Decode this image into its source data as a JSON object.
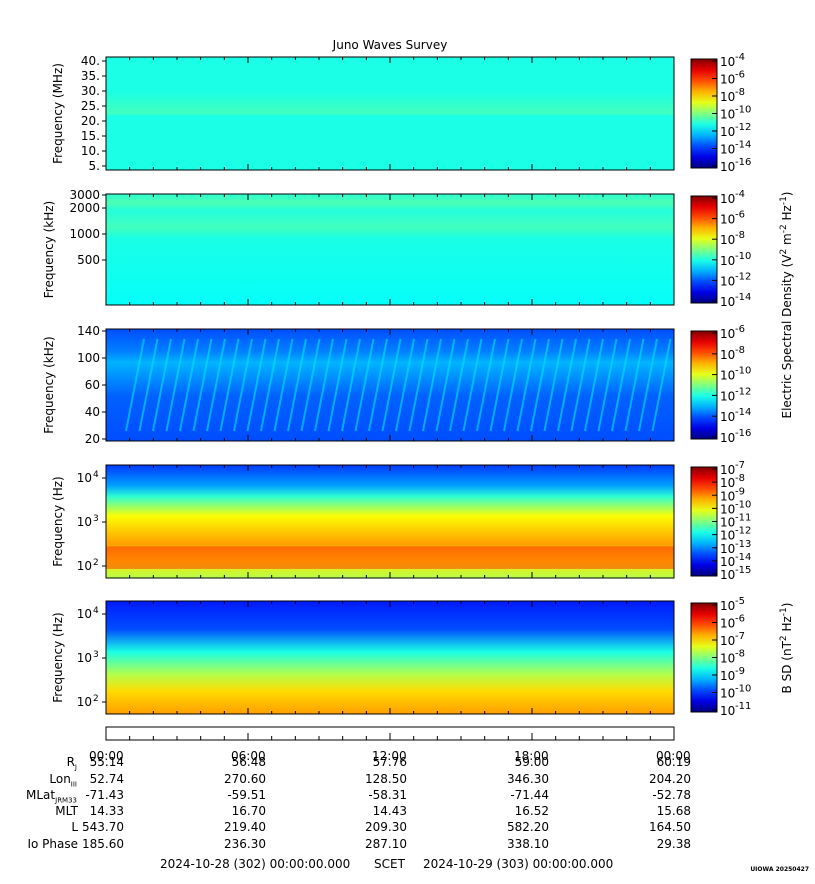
{
  "title": "Juno Waves Survey",
  "panels": [
    {
      "ylabel": "Frequency (MHz)",
      "yticks": [
        "40.",
        "35.",
        "30.",
        "25.",
        "20.",
        "15.",
        "10.",
        "5."
      ],
      "cbar_ticks": [
        "-4",
        "-6",
        "-8",
        "-10",
        "-12",
        "-14",
        "-16"
      ],
      "cbar_range": [
        -17,
        -4
      ],
      "data_range": [
        -13,
        -11
      ],
      "description_level": "uniform"
    },
    {
      "ylabel": "Frequency (kHz)",
      "yticks": [
        "3000",
        "2000",
        "1000",
        "500"
      ],
      "cbar_ticks": [
        "-4",
        "-6",
        "-8",
        "-10",
        "-12",
        "-14"
      ],
      "cbar_range": [
        -15,
        -3.5
      ]
    },
    {
      "ylabel": "Frequency (kHz)",
      "yticks": [
        "140",
        "100",
        "60",
        "40",
        "20"
      ],
      "cbar_ticks": [
        "-6",
        "-8",
        "-10",
        "-12",
        "-14",
        "-16"
      ],
      "cbar_range": [
        -16,
        -6
      ]
    },
    {
      "ylabel": "Frequency (Hz)",
      "yticks": [
        "10",
        "10",
        "10"
      ],
      "yticks_exp": [
        "4",
        "3",
        "2"
      ],
      "cbar_ticks": [
        "-7",
        "-8",
        "-9",
        "-10",
        "-11",
        "-12",
        "-13",
        "-14",
        "-15"
      ],
      "cbar_range": [
        -15,
        -7
      ]
    },
    {
      "ylabel": "Frequency (Hz)",
      "yticks": [
        "10",
        "10",
        "10"
      ],
      "yticks_exp": [
        "4",
        "3",
        "2"
      ],
      "cbar_ticks": [
        "-5",
        "-6",
        "-7",
        "-8",
        "-9",
        "-10",
        "-11"
      ],
      "cbar_range": [
        -11,
        -4.5
      ]
    }
  ],
  "cbar_base": "10",
  "cbar_label_e": {
    "pre": "Electric Spectral Density (V",
    "sup1": "2",
    "mid": " m",
    "sup2": "-2",
    "mid2": " Hz",
    "sup3": "-1",
    "post": ")"
  },
  "cbar_label_b": {
    "pre": "B SD (nT",
    "sup1": "2",
    "mid": " Hz",
    "sup2": "-1",
    "post": ")"
  },
  "chart_data": {
    "type": "heatmap",
    "title": "Juno Waves Survey",
    "xlabel": "SCET",
    "x_ticks": [
      "00:00",
      "06:00",
      "12:00",
      "18:00",
      "00:00"
    ],
    "x_range": [
      "2024-10-28 (302) 00:00:00.000",
      "2024-10-29 (303) 00:00:00.000"
    ],
    "series": [
      {
        "panel": 1,
        "ylabel": "Frequency (MHz)",
        "yrange": [
          3,
          41
        ],
        "colorbar_log_range": [
          -17,
          -4
        ]
      },
      {
        "panel": 2,
        "ylabel": "Frequency (kHz)",
        "yrange": [
          150,
          3000
        ],
        "colorbar_log_range": [
          -15,
          -3.5
        ]
      },
      {
        "panel": 3,
        "ylabel": "Frequency (kHz)",
        "yrange": [
          20,
          140
        ],
        "colorbar_log_range": [
          -16,
          -6
        ]
      },
      {
        "panel": 4,
        "ylabel": "Frequency (Hz)",
        "yrange": [
          50,
          20000
        ],
        "colorbar_log_range": [
          -15,
          -7
        ]
      },
      {
        "panel": 5,
        "ylabel": "Frequency (Hz)",
        "yrange": [
          50,
          20000
        ],
        "colorbar_log_range": [
          -11,
          -4.5
        ]
      }
    ]
  },
  "ephemeris": {
    "labels": [
      {
        "main": "R",
        "sub": "J"
      },
      {
        "main": "Lon",
        "sub": "III"
      },
      {
        "main": "MLat",
        "sub": "JRM33"
      },
      {
        "main": "MLT",
        "sub": ""
      },
      {
        "main": "L",
        "sub": ""
      },
      {
        "main": "Io Phase",
        "sub": ""
      }
    ],
    "columns": [
      [
        "55.14",
        "52.74",
        "-71.43",
        "14.33",
        "543.70",
        "185.60"
      ],
      [
        "56.48",
        "270.60",
        "-59.51",
        "16.70",
        "219.40",
        "236.30"
      ],
      [
        "57.76",
        "128.50",
        "-58.31",
        "14.43",
        "209.30",
        "287.10"
      ],
      [
        "59.00",
        "346.30",
        "-71.44",
        "16.52",
        "582.20",
        "338.10"
      ],
      [
        "60.19",
        "204.20",
        "-52.78",
        "15.68",
        "164.50",
        "29.38"
      ]
    ]
  },
  "footer": {
    "start": "2024-10-28 (302) 00:00:00.000",
    "label": "SCET",
    "end": "2024-10-29 (303) 00:00:00.000"
  },
  "watermark": "UIOWA 20250427"
}
